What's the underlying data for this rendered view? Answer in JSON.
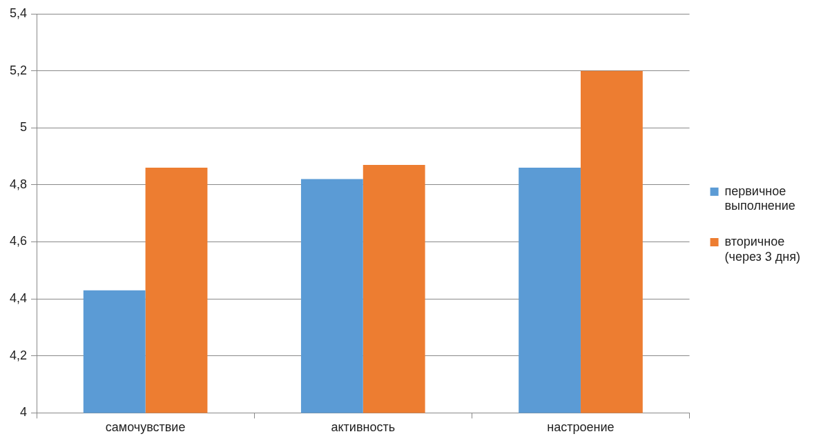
{
  "chart_data": {
    "type": "bar",
    "categories": [
      "самочувствие",
      "активность",
      "настроение"
    ],
    "series": [
      {
        "name": "первичное выполнение",
        "color": "#5b9bd5",
        "values": [
          4.43,
          4.82,
          4.86
        ]
      },
      {
        "name": "вторичное (через 3 дня)",
        "color": "#ed7d31",
        "values": [
          4.86,
          4.87,
          5.2
        ]
      }
    ],
    "ylim": [
      4,
      5.4
    ],
    "yticks": [
      4,
      {
        "value": 4.2,
        "label": "4,2"
      },
      {
        "value": 4.4,
        "label": "4,4"
      },
      {
        "value": 4.6,
        "label": "4,6"
      },
      {
        "value": 4.8,
        "label": "4,8"
      },
      5,
      {
        "value": 5.2,
        "label": "5,2"
      },
      {
        "value": 5.4,
        "label": "5,4"
      }
    ],
    "grid": "y",
    "legend": "right"
  }
}
